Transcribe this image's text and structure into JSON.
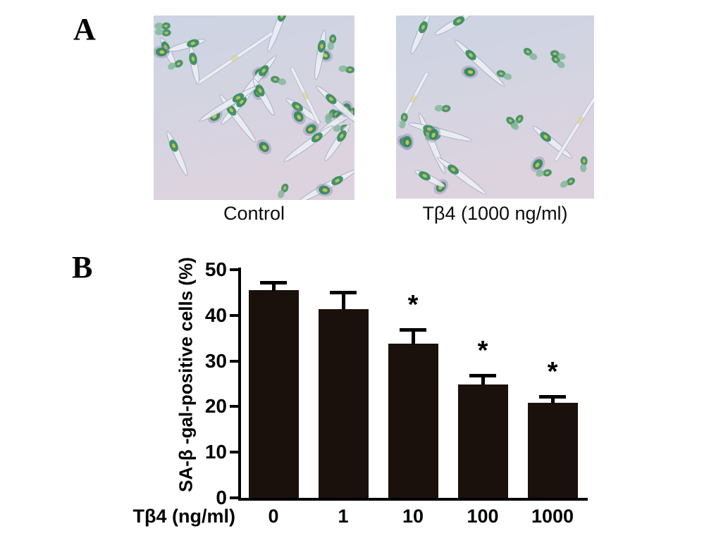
{
  "figure": {
    "panel_a": {
      "label": "A",
      "images": [
        {
          "caption": "Control"
        },
        {
          "caption": "Tβ4 (1000 ng/ml)"
        }
      ]
    },
    "panel_b": {
      "label": "B"
    }
  },
  "chart_data": {
    "type": "bar",
    "title": "",
    "xlabel": "Tβ4 (ng/ml)",
    "ylabel": "SA-β -gal-positive cells (%)",
    "categories": [
      "0",
      "1",
      "10",
      "100",
      "1000"
    ],
    "values": [
      45.5,
      41.3,
      33.8,
      24.8,
      20.8
    ],
    "errors": [
      2.0,
      4.0,
      3.4,
      2.3,
      1.7
    ],
    "significance": [
      "",
      "",
      "*",
      "*",
      "*"
    ],
    "ylim": [
      0,
      50
    ],
    "yticks": [
      0,
      10,
      20,
      30,
      40,
      50
    ],
    "grid": false,
    "legend": null,
    "bar_color": "#1a100c",
    "axis_color": "#000000"
  },
  "colors": {
    "micrograph_bg_top": "#ccd4e3",
    "micrograph_bg_bottom": "#ddd3df",
    "cell_green": "#2f8a5a",
    "cell_green_light": "#7fb596",
    "cell_yellow": "#d2c84e",
    "cell_halo": "#8f8ab2",
    "spindle": "#eceff3"
  }
}
